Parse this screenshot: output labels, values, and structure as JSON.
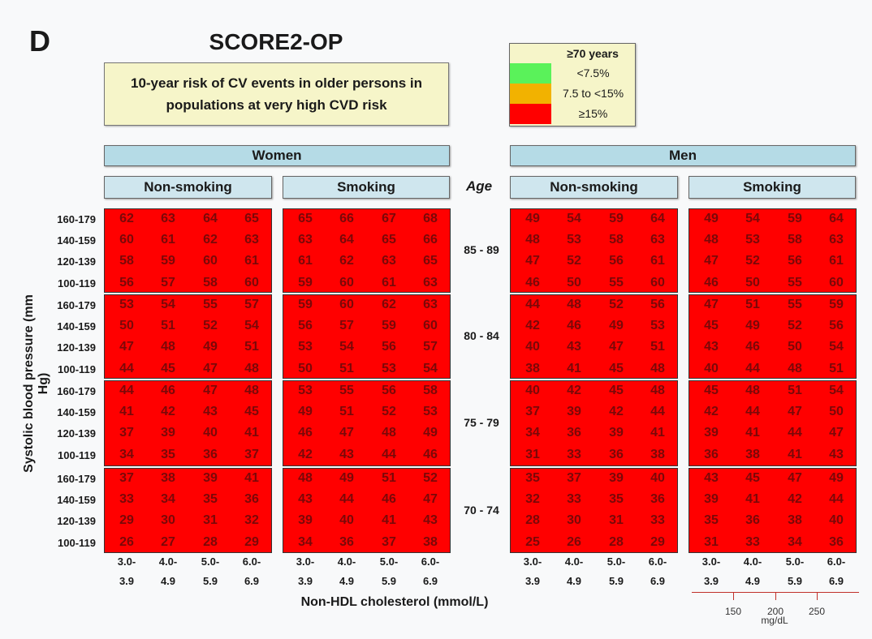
{
  "panel_letter": "D",
  "chart_data": {
    "type": "heatmap",
    "title": "SCORE2-OP",
    "subtitle": "10-year risk of CV events in older persons in\npopulations at very high CVD risk",
    "legend": {
      "title": "≥70 years",
      "items": [
        {
          "label": "<7.5%",
          "color": "#5af25a",
          "max": 7.5
        },
        {
          "label": "7.5 to <15%",
          "color": "#f2b200",
          "max": 15
        },
        {
          "label": "≥15%",
          "color": "#ff0000",
          "max": 1000
        }
      ]
    },
    "sexes": [
      "Women",
      "Men"
    ],
    "smoking_status": [
      "Non-smoking",
      "Smoking"
    ],
    "age_header": "Age",
    "age_groups": [
      "85 - 89",
      "80 - 84",
      "75 - 79",
      "70 - 74"
    ],
    "sbp_categories": [
      "160-179",
      "140-159",
      "120-139",
      "100-119"
    ],
    "cholesterol_categories": [
      [
        "3.0-",
        "3.9"
      ],
      [
        "4.0-",
        "4.9"
      ],
      [
        "5.0-",
        "5.9"
      ],
      [
        "6.0-",
        "6.9"
      ]
    ],
    "ylabel": "Systolic blood pressure (mm Hg)",
    "xlabel": "Non-HDL cholesterol (mmol/L)",
    "mgdl_scale": {
      "ticks": [
        "150",
        "200",
        "250"
      ],
      "unit": "mg/dL"
    },
    "values": {
      "Women": {
        "Non-smoking": [
          [
            [
              62,
              63,
              64,
              65
            ],
            [
              60,
              61,
              62,
              63
            ],
            [
              58,
              59,
              60,
              61
            ],
            [
              56,
              57,
              58,
              60
            ]
          ],
          [
            [
              53,
              54,
              55,
              57
            ],
            [
              50,
              51,
              52,
              54
            ],
            [
              47,
              48,
              49,
              51
            ],
            [
              44,
              45,
              47,
              48
            ]
          ],
          [
            [
              44,
              46,
              47,
              48
            ],
            [
              41,
              42,
              43,
              45
            ],
            [
              37,
              39,
              40,
              41
            ],
            [
              34,
              35,
              36,
              37
            ]
          ],
          [
            [
              37,
              38,
              39,
              41
            ],
            [
              33,
              34,
              35,
              36
            ],
            [
              29,
              30,
              31,
              32
            ],
            [
              26,
              27,
              28,
              29
            ]
          ]
        ],
        "Smoking": [
          [
            [
              65,
              66,
              67,
              68
            ],
            [
              63,
              64,
              65,
              66
            ],
            [
              61,
              62,
              63,
              65
            ],
            [
              59,
              60,
              61,
              63
            ]
          ],
          [
            [
              59,
              60,
              62,
              63
            ],
            [
              56,
              57,
              59,
              60
            ],
            [
              53,
              54,
              56,
              57
            ],
            [
              50,
              51,
              53,
              54
            ]
          ],
          [
            [
              53,
              55,
              56,
              58
            ],
            [
              49,
              51,
              52,
              53
            ],
            [
              46,
              47,
              48,
              49
            ],
            [
              42,
              43,
              44,
              46
            ]
          ],
          [
            [
              48,
              49,
              51,
              52
            ],
            [
              43,
              44,
              46,
              47
            ],
            [
              39,
              40,
              41,
              43
            ],
            [
              34,
              36,
              37,
              38
            ]
          ]
        ]
      },
      "Men": {
        "Non-smoking": [
          [
            [
              49,
              54,
              59,
              64
            ],
            [
              48,
              53,
              58,
              63
            ],
            [
              47,
              52,
              56,
              61
            ],
            [
              46,
              50,
              55,
              60
            ]
          ],
          [
            [
              44,
              48,
              52,
              56
            ],
            [
              42,
              46,
              49,
              53
            ],
            [
              40,
              43,
              47,
              51
            ],
            [
              38,
              41,
              45,
              48
            ]
          ],
          [
            [
              40,
              42,
              45,
              48
            ],
            [
              37,
              39,
              42,
              44
            ],
            [
              34,
              36,
              39,
              41
            ],
            [
              31,
              33,
              36,
              38
            ]
          ],
          [
            [
              35,
              37,
              39,
              40
            ],
            [
              32,
              33,
              35,
              36
            ],
            [
              28,
              30,
              31,
              33
            ],
            [
              25,
              26,
              28,
              29
            ]
          ]
        ],
        "Smoking": [
          [
            [
              49,
              54,
              59,
              64
            ],
            [
              48,
              53,
              58,
              63
            ],
            [
              47,
              52,
              56,
              61
            ],
            [
              46,
              50,
              55,
              60
            ]
          ],
          [
            [
              47,
              51,
              55,
              59
            ],
            [
              45,
              49,
              52,
              56
            ],
            [
              43,
              46,
              50,
              54
            ],
            [
              40,
              44,
              48,
              51
            ]
          ],
          [
            [
              45,
              48,
              51,
              54
            ],
            [
              42,
              44,
              47,
              50
            ],
            [
              39,
              41,
              44,
              47
            ],
            [
              36,
              38,
              41,
              43
            ]
          ],
          [
            [
              43,
              45,
              47,
              49
            ],
            [
              39,
              41,
              42,
              44
            ],
            [
              35,
              36,
              38,
              40
            ],
            [
              31,
              33,
              34,
              36
            ]
          ]
        ]
      }
    }
  }
}
